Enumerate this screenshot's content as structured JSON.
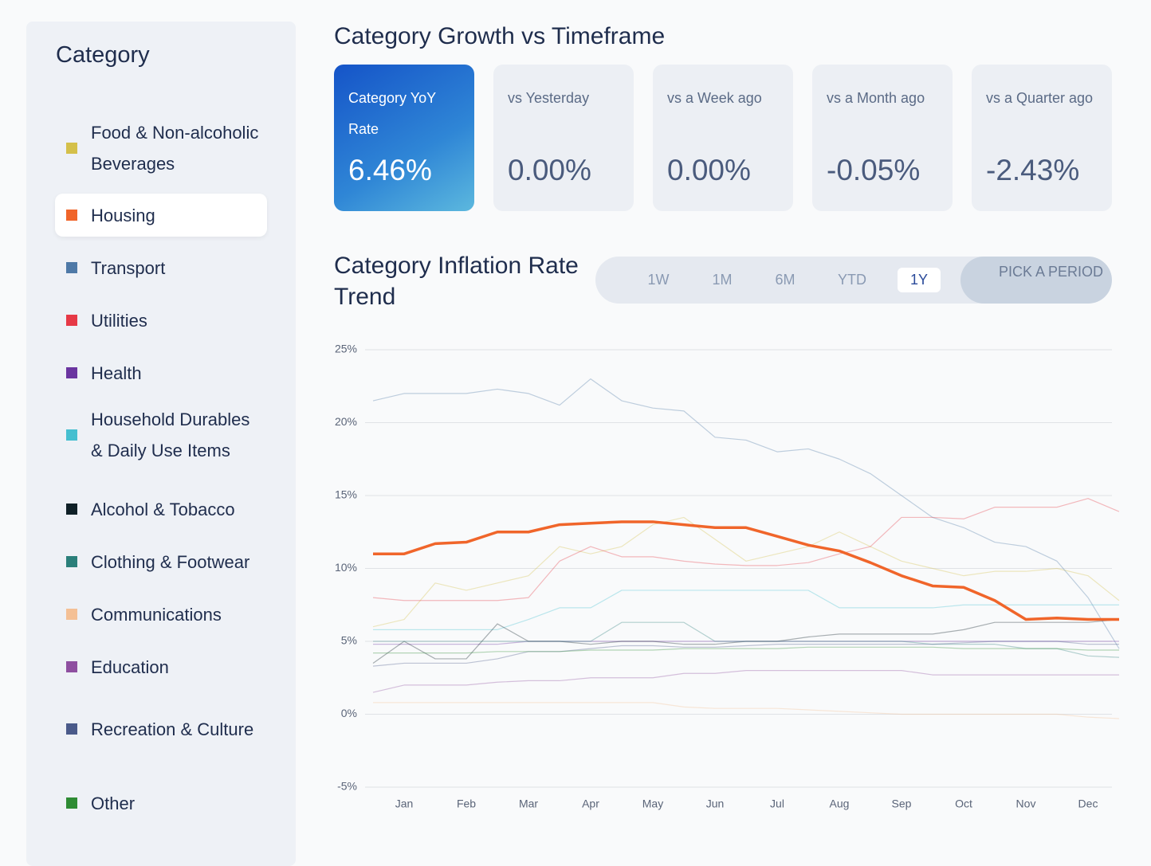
{
  "sidebar": {
    "title": "Category"
  },
  "cards": {
    "title": "Category Growth vs Timeframe",
    "items": [
      {
        "label": "Category YoY Rate",
        "value": "6.46%"
      },
      {
        "label": "vs Yesterday",
        "value": "0.00%"
      },
      {
        "label": "vs a Week ago",
        "value": "0.00%"
      },
      {
        "label": "vs a Month ago",
        "value": "-0.05%"
      },
      {
        "label": "vs a Quarter ago",
        "value": "-2.43%"
      }
    ]
  },
  "periods": {
    "options": [
      "1W",
      "1M",
      "6M",
      "YTD",
      "1Y"
    ],
    "active": "1Y",
    "pick": "PICK A PERIOD"
  },
  "chart_data": {
    "type": "line",
    "title": "Category Inflation Rate Trend",
    "categories": [
      null,
      "Jan",
      null,
      "Feb",
      null,
      "Mar",
      null,
      "Apr",
      null,
      "May",
      null,
      "Jun",
      null,
      "Jul",
      null,
      "Aug",
      null,
      "Sep",
      null,
      "Oct",
      null,
      "Nov",
      null,
      "Dec",
      null
    ],
    "highlighted_series": "Housing",
    "series": [
      {
        "name": "Food & Non-alcoholic Beverages",
        "color": "#d4c04a",
        "values": [
          6.0,
          6.5,
          9.0,
          8.5,
          9.0,
          9.5,
          11.5,
          11.0,
          11.5,
          13.0,
          13.5,
          12.0,
          10.5,
          11.0,
          11.5,
          12.5,
          11.5,
          10.5,
          10.0,
          9.5,
          9.8,
          9.8,
          10.0,
          9.5,
          7.8
        ]
      },
      {
        "name": "Housing",
        "color": "#f0652a",
        "values": [
          11.0,
          11.0,
          11.7,
          11.8,
          12.5,
          12.5,
          13.0,
          13.1,
          13.2,
          13.2,
          13.0,
          12.8,
          12.8,
          12.2,
          11.6,
          11.2,
          10.4,
          9.5,
          8.8,
          8.7,
          7.8,
          6.5,
          6.6,
          6.5,
          6.5
        ]
      },
      {
        "name": "Transport",
        "color": "#4e79a7",
        "values": [
          21.5,
          22.0,
          22.0,
          22.0,
          22.3,
          22.0,
          21.2,
          23.0,
          21.5,
          21.0,
          20.8,
          19.0,
          18.8,
          18.0,
          18.2,
          17.5,
          16.5,
          15.0,
          13.5,
          12.8,
          11.8,
          11.5,
          10.5,
          8.0,
          4.5
        ]
      },
      {
        "name": "Utilities",
        "color": "#e63946",
        "values": [
          8.0,
          7.8,
          7.8,
          7.8,
          7.8,
          8.0,
          10.5,
          11.5,
          10.8,
          10.8,
          10.5,
          10.3,
          10.2,
          10.2,
          10.4,
          11.0,
          11.5,
          13.5,
          13.5,
          13.4,
          14.2,
          14.2,
          14.2,
          14.8,
          13.9
        ]
      },
      {
        "name": "Health",
        "color": "#6a35a0",
        "values": [
          4.8,
          4.8,
          4.8,
          4.8,
          4.8,
          5.0,
          5.0,
          5.0,
          5.0,
          5.0,
          5.0,
          5.0,
          5.0,
          5.0,
          5.0,
          5.0,
          5.0,
          5.0,
          5.0,
          5.0,
          5.0,
          5.0,
          5.0,
          5.0,
          5.0
        ]
      },
      {
        "name": "Household Durables & Daily Use Items",
        "color": "#45bfd0",
        "values": [
          5.8,
          5.8,
          5.8,
          5.8,
          5.8,
          6.5,
          7.3,
          7.3,
          8.5,
          8.5,
          8.5,
          8.5,
          8.5,
          8.5,
          8.5,
          7.3,
          7.3,
          7.3,
          7.3,
          7.5,
          7.5,
          7.5,
          7.5,
          7.5,
          7.5
        ]
      },
      {
        "name": "Alcohol & Tobacco",
        "color": "#0f2027",
        "values": [
          3.5,
          5.0,
          3.8,
          3.8,
          6.2,
          5.0,
          5.0,
          4.8,
          5.0,
          5.0,
          4.8,
          4.8,
          5.0,
          5.0,
          5.3,
          5.5,
          5.5,
          5.5,
          5.5,
          5.8,
          6.3,
          6.3,
          6.3,
          6.3,
          6.5
        ]
      },
      {
        "name": "Clothing & Footwear",
        "color": "#2a7f7a",
        "values": [
          5.0,
          5.0,
          5.0,
          5.0,
          5.0,
          5.0,
          5.0,
          5.0,
          6.3,
          6.3,
          6.3,
          5.0,
          5.0,
          5.0,
          5.0,
          5.0,
          5.0,
          5.0,
          4.8,
          4.8,
          4.8,
          4.5,
          4.5,
          4.0,
          3.9
        ]
      },
      {
        "name": "Communications",
        "color": "#f4c095",
        "values": [
          0.8,
          0.8,
          0.8,
          0.8,
          0.8,
          0.8,
          0.8,
          0.8,
          0.8,
          0.8,
          0.5,
          0.4,
          0.4,
          0.4,
          0.3,
          0.2,
          0.1,
          0,
          0,
          0,
          0,
          0,
          0,
          -0.2,
          -0.3
        ]
      },
      {
        "name": "Education",
        "color": "#8e4fa0",
        "values": [
          1.5,
          2.0,
          2.0,
          2.0,
          2.2,
          2.3,
          2.3,
          2.5,
          2.5,
          2.5,
          2.8,
          2.8,
          3.0,
          3.0,
          3.0,
          3.0,
          3.0,
          3.0,
          2.7,
          2.7,
          2.7,
          2.7,
          2.7,
          2.7,
          2.7
        ]
      },
      {
        "name": "Recreation & Culture",
        "color": "#4a5a8a",
        "values": [
          3.3,
          3.5,
          3.5,
          3.5,
          3.8,
          4.3,
          4.3,
          4.5,
          4.7,
          4.7,
          4.6,
          4.6,
          4.7,
          4.8,
          4.8,
          4.8,
          4.8,
          4.8,
          4.8,
          4.9,
          5.0,
          5.0,
          5.0,
          4.8,
          4.8
        ]
      },
      {
        "name": "Other",
        "color": "#2e8b34",
        "values": [
          4.2,
          4.2,
          4.2,
          4.2,
          4.3,
          4.3,
          4.3,
          4.4,
          4.4,
          4.4,
          4.5,
          4.5,
          4.5,
          4.5,
          4.6,
          4.6,
          4.6,
          4.6,
          4.6,
          4.5,
          4.5,
          4.5,
          4.5,
          4.4,
          4.4
        ]
      }
    ],
    "ylim": [
      -5,
      25
    ],
    "yticks": [
      {
        "value": -5,
        "label": "-5%"
      },
      {
        "value": 0,
        "label": "0%"
      },
      {
        "value": 5,
        "label": "5%"
      },
      {
        "value": 10,
        "label": "10%"
      },
      {
        "value": 15,
        "label": "15%"
      },
      {
        "value": 20,
        "label": "20%"
      },
      {
        "value": 25,
        "label": "25%"
      }
    ],
    "grid": true
  }
}
